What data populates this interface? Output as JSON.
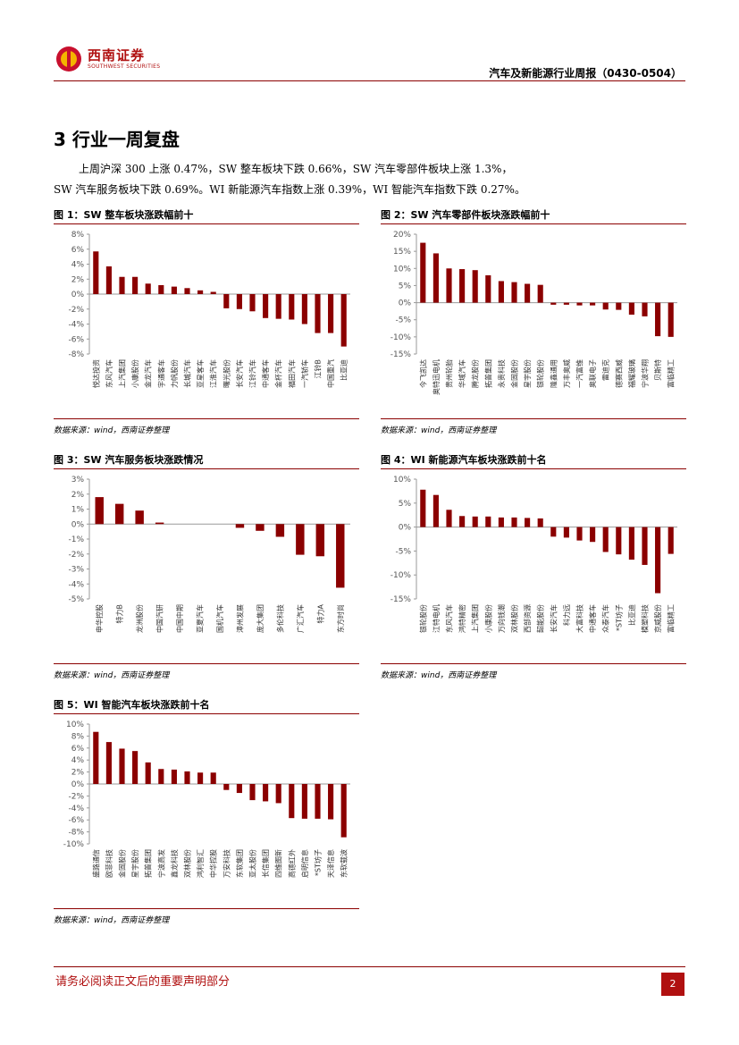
{
  "header": {
    "logo_cn": "西南证券",
    "logo_en": "SOUTHWEST SECURITIES",
    "report_title": "汽车及新能源行业周报（0430-0504）"
  },
  "section": {
    "title": "3 行业一周复盘",
    "para1": "上周沪深 300 上涨 0.47%，SW 整车板块下跌 0.66%，SW 汽车零部件板块上涨 1.3%，",
    "para2": "SW 汽车服务板块下跌 0.69%。WI 新能源汽车指数上涨 0.39%，WI 智能汽车指数下跌 0.27%。"
  },
  "figures": [
    {
      "title": "图 1：SW 整车板块涨跌幅前十",
      "source": "数据来源：wind，西南证券整理"
    },
    {
      "title": "图 2：SW 汽车零部件板块涨跌幅前十",
      "source": "数据来源：wind，西南证券整理"
    },
    {
      "title": "图 3：SW 汽车服务板块涨跌情况",
      "source": "数据来源：wind，西南证券整理"
    },
    {
      "title": "图 4：WI 新能源汽车板块涨跌前十名",
      "source": "数据来源：wind，西南证券整理"
    },
    {
      "title": "图 5：WI 智能汽车板块涨跌前十名",
      "source": "数据来源：wind，西南证券整理"
    }
  ],
  "colors": {
    "bar": "#8b0000",
    "accent": "#b01010",
    "axis": "#999999"
  },
  "chart_data": [
    {
      "type": "bar",
      "ylim": [
        -8,
        8
      ],
      "ystep": 2,
      "yunit": "%",
      "categories": [
        "悦达投资",
        "东风汽车",
        "上汽集团",
        "小康股份",
        "金龙汽车",
        "宇通客车",
        "力帆股份",
        "长城汽车",
        "亚星客车",
        "江淮汽车",
        "曙光股份",
        "长安汽车",
        "江铃汽车",
        "中通客车",
        "金杯汽车",
        "福田汽车",
        "一汽轿车",
        "江铃B",
        "中国重汽",
        "比亚迪"
      ],
      "values": [
        5.7,
        3.7,
        2.3,
        2.3,
        1.4,
        1.2,
        1.0,
        0.8,
        0.5,
        0.3,
        -1.9,
        -2.0,
        -2.3,
        -3.2,
        -3.3,
        -3.4,
        -4.0,
        -5.2,
        -5.2,
        -7.0
      ]
    },
    {
      "type": "bar",
      "ylim": [
        -15,
        20
      ],
      "ystep": 5,
      "yunit": "%",
      "categories": [
        "今飞凯达",
        "奥特迅电机",
        "贵州轮胎",
        "华域汽车",
        "腾龙股份",
        "拓普集团",
        "永贵科技",
        "金固股份",
        "星宇股份",
        "银轮股份",
        "隆鑫通用",
        "万丰奥威",
        "一汽富维",
        "奥联电子",
        "雷迪克",
        "德赛西威",
        "福耀玻璃",
        "宁波华翔",
        "贝斯特",
        "富临精工"
      ],
      "values": [
        17.5,
        14.4,
        10.0,
        9.8,
        9.5,
        8.0,
        6.3,
        6.0,
        5.5,
        5.2,
        -0.6,
        -0.6,
        -0.8,
        -0.8,
        -2.0,
        -2.1,
        -3.5,
        -4.0,
        -9.8,
        -10.0
      ]
    },
    {
      "type": "bar",
      "ylim": [
        -5,
        3
      ],
      "ystep": 1,
      "yunit": "%",
      "categories": [
        "申华控股",
        "特力B",
        "龙洲股份",
        "中国汽研",
        "中国中期",
        "亚夏汽车",
        "国机汽车",
        "漳州发展",
        "庞大集团",
        "多伦科技",
        "广汇汽车",
        "特力A",
        "东方时尚"
      ],
      "values": [
        1.8,
        1.35,
        0.9,
        0.1,
        0,
        0,
        0,
        -0.25,
        -0.45,
        -0.85,
        -2.05,
        -2.15,
        -4.25
      ]
    },
    {
      "type": "bar",
      "ylim": [
        -15,
        10
      ],
      "ystep": 5,
      "yunit": "%",
      "categories": [
        "银轮股份",
        "江特电机",
        "东风汽车",
        "鸿特精密",
        "上汽集团",
        "小康股份",
        "万向钱潮",
        "双林股份",
        "西部资源",
        "韶能股份",
        "长安汽车",
        "科力远",
        "大富科技",
        "中通客车",
        "众泰汽车",
        "*ST坊子",
        "比亚迪",
        "模塑科技",
        "京威股份",
        "富临精工"
      ],
      "values": [
        7.8,
        6.7,
        3.6,
        2.3,
        2.2,
        2.2,
        2.0,
        2.0,
        1.9,
        1.8,
        -2.0,
        -2.2,
        -2.8,
        -3.1,
        -5.2,
        -5.7,
        -6.8,
        -7.9,
        -13.8,
        -5.6
      ]
    },
    {
      "type": "bar",
      "ylim": [
        -10,
        10
      ],
      "ystep": 2,
      "yunit": "%",
      "categories": [
        "盛路通信",
        "欧菲科技",
        "金固股份",
        "星宇股份",
        "拓普集团",
        "宁波高发",
        "鑫龙科技",
        "双林股份",
        "鸿利智汇",
        "中华控股",
        "万安科技",
        "东软集团",
        "亚太股份",
        "长信集团",
        "四维图新",
        "高德红外",
        "启明信息",
        "*ST坊子",
        "天泽信息",
        "东软载波"
      ],
      "values": [
        8.7,
        7.0,
        5.9,
        5.5,
        3.6,
        2.5,
        2.4,
        2.1,
        1.9,
        1.9,
        -1.0,
        -1.5,
        -2.7,
        -2.9,
        -3.2,
        -5.7,
        -5.8,
        -5.8,
        -5.9,
        -8.9
      ]
    }
  ],
  "footer": {
    "disclaimer": "请务必阅读正文后的重要声明部分",
    "page": "2"
  }
}
